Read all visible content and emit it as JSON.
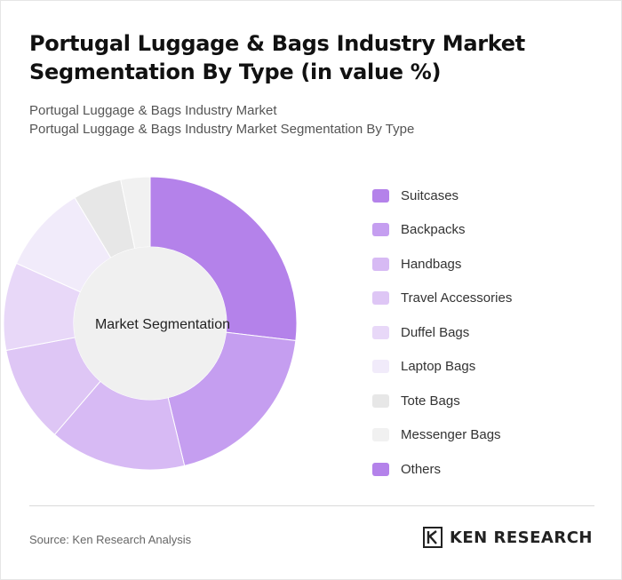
{
  "header": {
    "title": "Portugal Luggage & Bags Industry Market Segmentation By Type (in value %)",
    "subtitle_line1": "Portugal Luggage & Bags Industry Market",
    "subtitle_line2": "Portugal Luggage & Bags Industry Market Segmentation By Type"
  },
  "chart_data": {
    "type": "pie",
    "variant": "donut",
    "center_label": "Market Segmentation",
    "categories": [
      "Suitcases",
      "Backpacks",
      "Handbags",
      "Travel Accessories",
      "Duffel Bags",
      "Laptop Bags",
      "Tote Bags",
      "Messenger Bags",
      "Others"
    ],
    "values": [
      25,
      18,
      14,
      10,
      9,
      9,
      5,
      3,
      0
    ],
    "colors": [
      "#b482ea",
      "#c59ef0",
      "#d7baf4",
      "#dec6f5",
      "#e8d8f8",
      "#f1ebfa",
      "#e7e7e7",
      "#f1f1f1",
      "#b482ea"
    ],
    "legend_position": "right"
  },
  "footer": {
    "source": "Source: Ken Research Analysis",
    "brand": "KEN RESEARCH"
  }
}
